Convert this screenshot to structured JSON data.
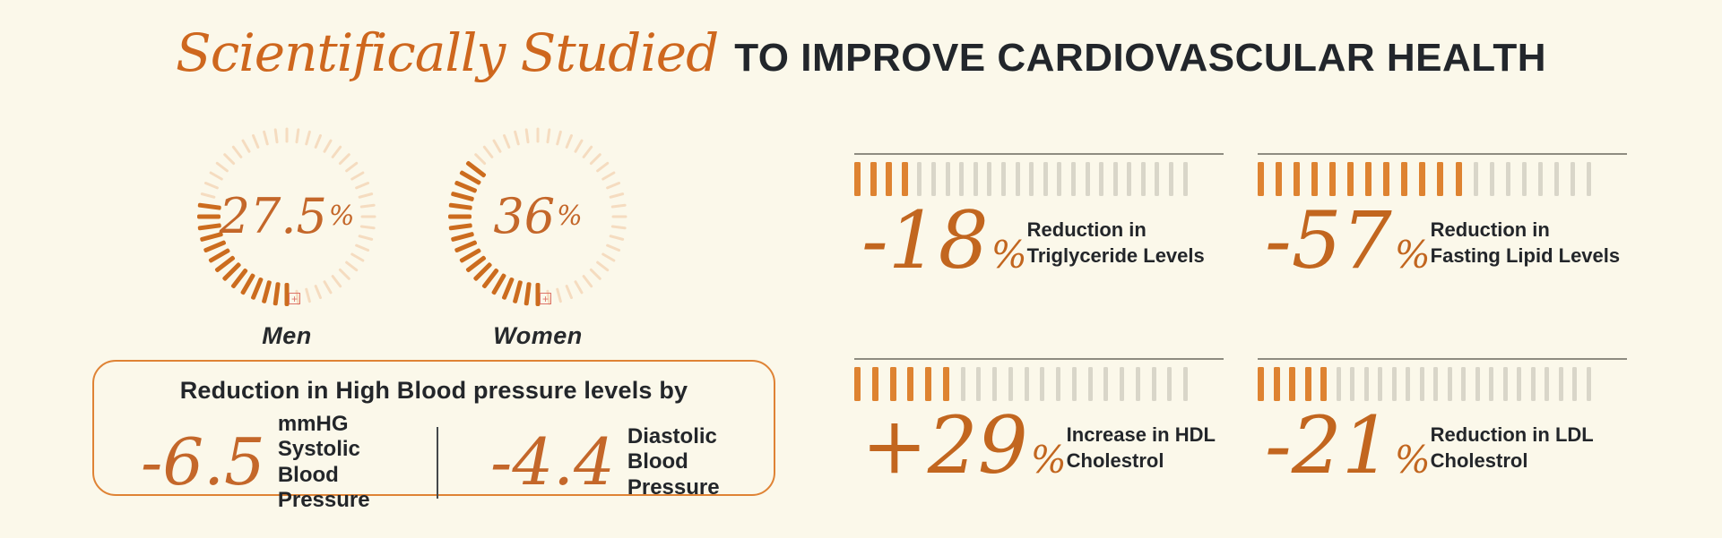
{
  "title": {
    "script": "Scientifically Studied",
    "rest": "TO IMPROVE CARDIOVASCULAR HEALTH"
  },
  "icons": {
    "broken_image_glyph": "+"
  },
  "colors": {
    "background": "#FBF8EA",
    "title_orange": "#CE671E",
    "number_orange": "#C4672A",
    "bar_orange": "#DE8331",
    "bar_gray": "#D9D6C9",
    "dial_tick_dark": "#CC6C1E",
    "dial_tick_light": "#F5DCC0",
    "rule_gray": "#8E8C81",
    "text_dark": "#23262A",
    "box_border": "#DF8335",
    "divider": "#45494C",
    "broken_icon": "#DD7468"
  },
  "chart_data": {
    "type": "infographic",
    "gauges": {
      "items": [
        {
          "label": "Men",
          "value": 27.5,
          "value_display": "27.5",
          "unit": "%"
        },
        {
          "label": "Women",
          "value": 36,
          "value_display": "36",
          "unit": "%"
        }
      ],
      "gauge_style": {
        "ticks_total": 48,
        "fill_start": "bottom",
        "fill_direction": "counterclockwise"
      }
    },
    "blood_pressure": {
      "heading": "Reduction in High Blood pressure levels by",
      "items": [
        {
          "value": "-6.5",
          "label_lines": [
            "mmHG Systolic",
            "Blood Pressure"
          ]
        },
        {
          "value": "-4.4",
          "label_lines": [
            "Diastolic",
            "Blood Pressure"
          ]
        }
      ]
    },
    "tick_stats": [
      {
        "value": "-18",
        "unit": "%",
        "percent": -18,
        "label_lines": [
          "Reduction in",
          "Triglyceride Levels"
        ],
        "bars_total": 24,
        "bars_filled": 4
      },
      {
        "value": "-57",
        "unit": "%",
        "percent": -57,
        "label_lines": [
          "Reduction in",
          "Fasting Lipid Levels"
        ],
        "bars_total": 20,
        "bars_filled": 12
      },
      {
        "value": "+29",
        "unit": "%",
        "percent": 29,
        "label_lines": [
          "Increase in HDL",
          "Cholestrol"
        ],
        "bars_total": 21,
        "bars_filled": 6
      },
      {
        "value": "-21",
        "unit": "%",
        "percent": -21,
        "label_lines": [
          "Reduction in LDL",
          "Cholestrol"
        ],
        "bars_total": 24,
        "bars_filled": 5
      }
    ]
  }
}
